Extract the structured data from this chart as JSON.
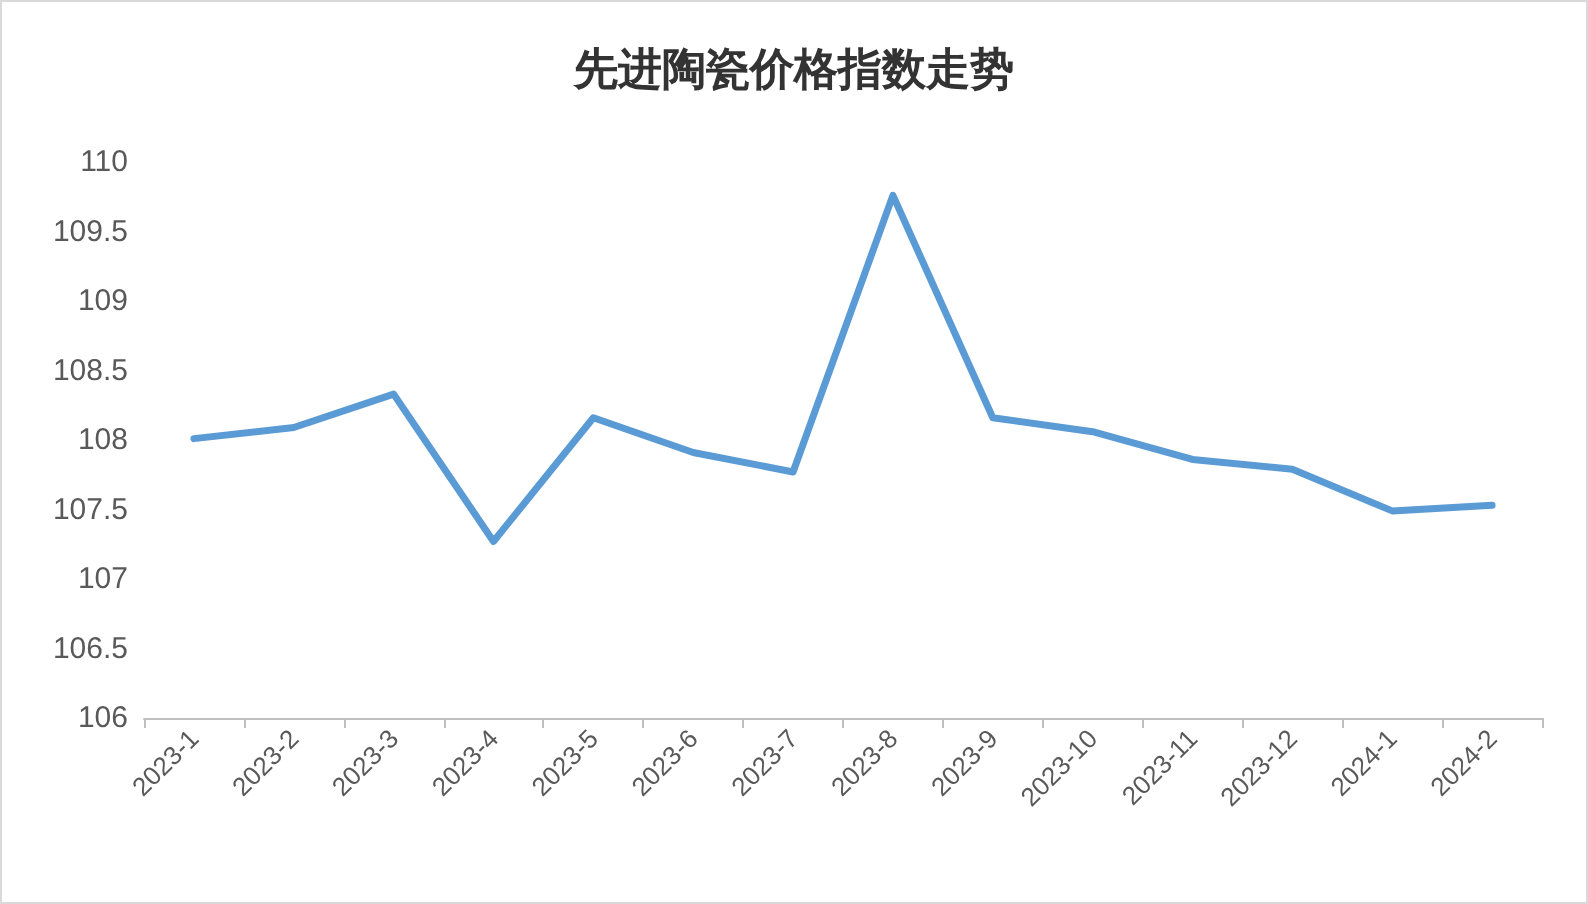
{
  "chart_data": {
    "type": "line",
    "title": "先进陶瓷价格指数走势",
    "categories": [
      "2023-1",
      "2023-2",
      "2023-3",
      "2023-4",
      "2023-5",
      "2023-6",
      "2023-7",
      "2023-8",
      "2023-9",
      "2023-10",
      "2023-11",
      "2023-12",
      "2024-1",
      "2024-2"
    ],
    "series": [
      {
        "color": "#5b9bd5",
        "values": [
          108.01,
          108.09,
          108.33,
          107.27,
          108.16,
          107.91,
          107.77,
          109.76,
          108.16,
          108.06,
          107.86,
          107.79,
          107.49,
          107.53
        ]
      }
    ],
    "ylim": [
      106,
      110
    ],
    "yticks": [
      106,
      106.5,
      107,
      107.5,
      108,
      108.5,
      109,
      109.5,
      110
    ],
    "grid": false,
    "marker": "none",
    "line_style": "solid"
  }
}
